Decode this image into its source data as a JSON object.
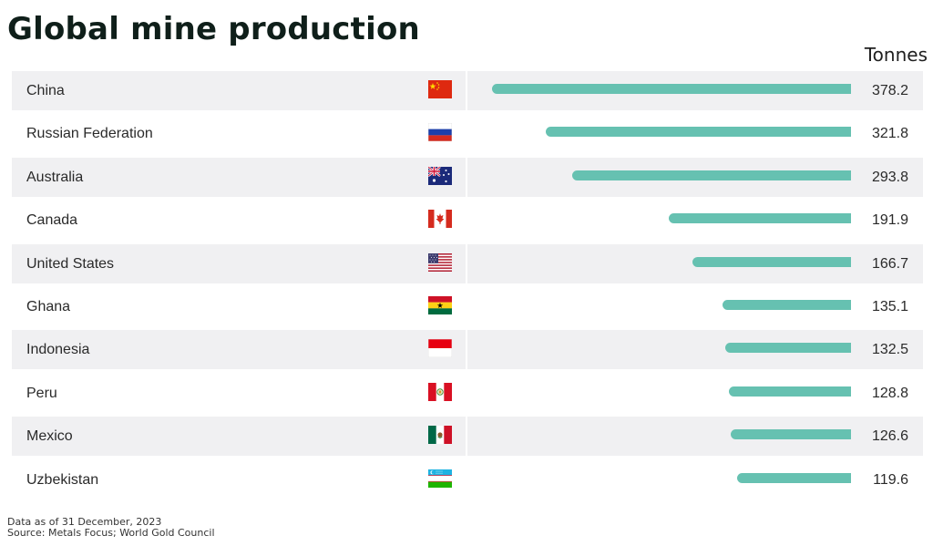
{
  "chart_data": {
    "type": "bar",
    "orientation": "horizontal",
    "title": "Global mine production",
    "unit_label": "Tonnes",
    "categories": [
      "China",
      "Russian Federation",
      "Australia",
      "Canada",
      "United States",
      "Ghana",
      "Indonesia",
      "Peru",
      "Mexico",
      "Uzbekistan"
    ],
    "values": [
      378.2,
      321.8,
      293.8,
      191.9,
      166.7,
      135.1,
      132.5,
      128.8,
      126.6,
      119.6
    ],
    "value_labels": [
      "378.2",
      "321.8",
      "293.8",
      "191.9",
      "166.7",
      "135.1",
      "132.5",
      "128.8",
      "126.6",
      "119.6"
    ],
    "flag_icons": [
      "china-flag-icon",
      "russia-flag-icon",
      "australia-flag-icon",
      "canada-flag-icon",
      "usa-flag-icon",
      "ghana-flag-icon",
      "indonesia-flag-icon",
      "peru-flag-icon",
      "mexico-flag-icon",
      "uzbekistan-flag-icon"
    ],
    "bar_color": "#66c1b1",
    "row_shading_color": "#f0f0f2",
    "xlim": [
      0,
      378.2
    ]
  },
  "footer": {
    "date_note": "Data as of 31 December, 2023",
    "source": "Source: Metals Focus; World Gold Council"
  }
}
